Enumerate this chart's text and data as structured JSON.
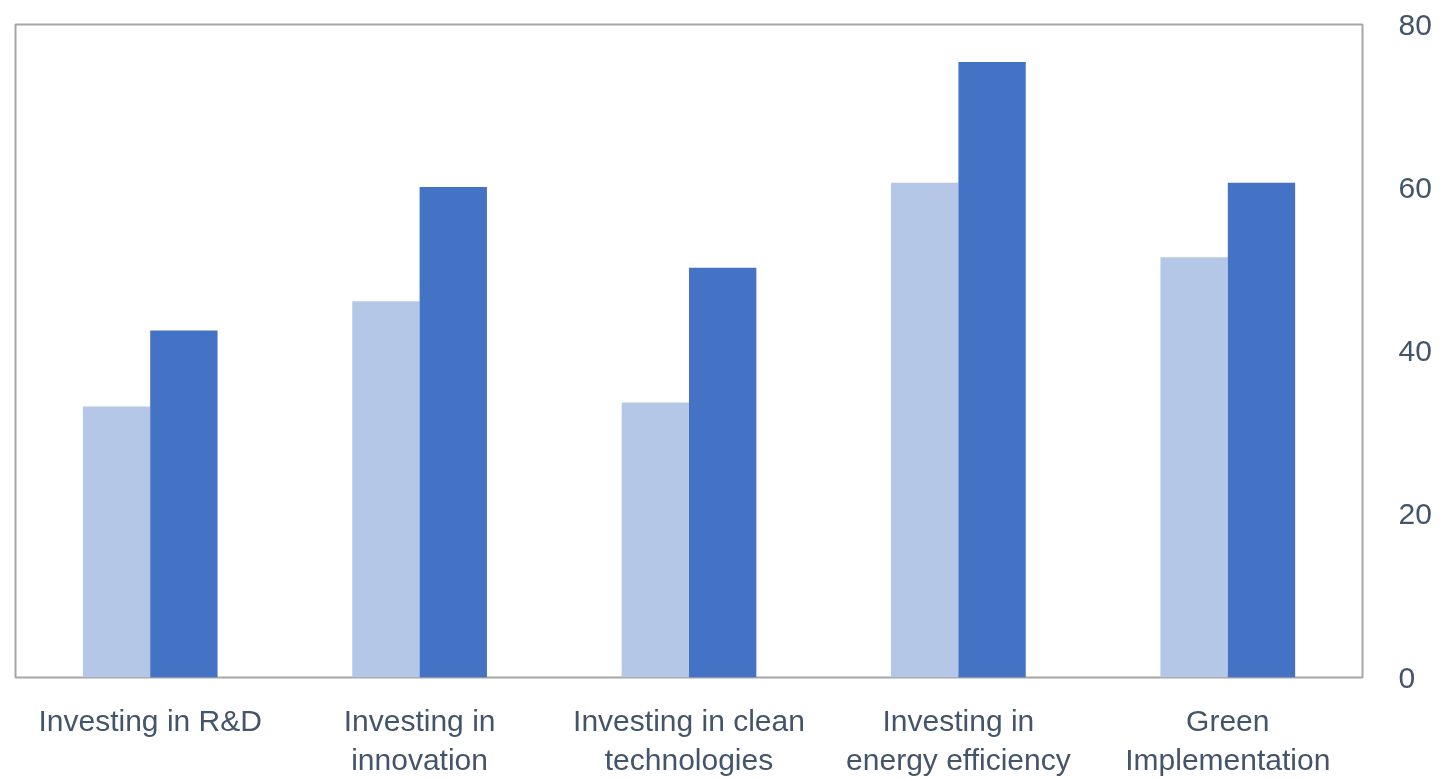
{
  "chart_data": {
    "type": "bar",
    "categories": [
      "Investing in R&D",
      "Investing in innovation",
      "Investing in clean technologies",
      "Investing in energy efficiency",
      "Green Implementation"
    ],
    "series": [
      {
        "color": "#b4c7e7",
        "values": [
          33.2,
          46.1,
          33.7,
          60.6,
          51.5
        ]
      },
      {
        "color": "#4472c4",
        "values": [
          42.5,
          60.1,
          50.2,
          75.4,
          60.6
        ]
      }
    ],
    "ylim": [
      0,
      80
    ],
    "yticks": [
      0,
      20,
      40,
      60,
      80
    ],
    "grid": false
  }
}
